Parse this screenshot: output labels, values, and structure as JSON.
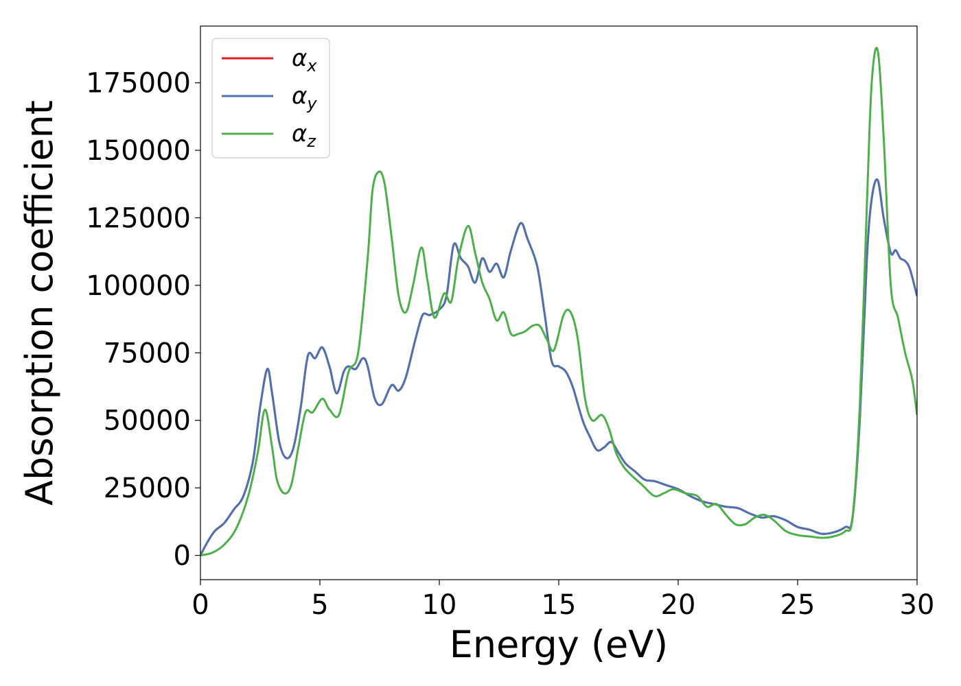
{
  "chart_data": {
    "type": "line",
    "xlabel": "Energy (eV)",
    "ylabel": "Absorption coefficient",
    "xlim": [
      0,
      30
    ],
    "ylim": [
      -9000,
      196000
    ],
    "xticks": [
      0,
      5,
      10,
      15,
      20,
      25,
      30
    ],
    "yticks": [
      0,
      25000,
      50000,
      75000,
      100000,
      125000,
      150000,
      175000
    ],
    "grid": false,
    "legend_position": "top-left",
    "series": [
      {
        "name": "αx",
        "legend_base": "α",
        "legend_sub": "x",
        "color": "#e41a1c",
        "x": [
          0,
          0.3,
          0.6,
          1.0,
          1.4,
          1.8,
          2.2,
          2.5,
          2.8,
          3.0,
          3.3,
          3.6,
          3.9,
          4.2,
          4.5,
          4.8,
          5.1,
          5.4,
          5.7,
          6.0,
          6.2,
          6.5,
          6.8,
          7.0,
          7.3,
          7.6,
          8.0,
          8.3,
          8.6,
          9.0,
          9.3,
          9.6,
          10.0,
          10.3,
          10.6,
          10.9,
          11.2,
          11.5,
          11.8,
          12.1,
          12.4,
          12.7,
          13.0,
          13.4,
          13.7,
          14.1,
          14.4,
          14.7,
          15.0,
          15.3,
          15.6,
          16.0,
          16.3,
          16.6,
          16.9,
          17.2,
          17.5,
          17.8,
          18.2,
          18.6,
          19.0,
          19.5,
          20.0,
          20.5,
          21.0,
          21.5,
          22.0,
          22.5,
          23.0,
          23.5,
          24.0,
          24.5,
          25.0,
          25.5,
          26.0,
          26.5,
          27.0,
          27.3,
          27.6,
          27.9,
          28.1,
          28.35,
          28.6,
          28.9,
          29.1,
          29.3,
          29.5,
          29.7,
          30.0
        ],
        "y": [
          0,
          5000,
          9000,
          12000,
          17000,
          22000,
          35000,
          55000,
          69000,
          60000,
          42000,
          36000,
          40000,
          55000,
          74000,
          73000,
          77000,
          70000,
          60000,
          68000,
          70000,
          69000,
          73000,
          70000,
          58000,
          56000,
          63000,
          61000,
          66000,
          80000,
          89000,
          89000,
          91000,
          96000,
          115000,
          110000,
          107000,
          101000,
          110000,
          105000,
          108000,
          103000,
          113000,
          123000,
          117000,
          107000,
          90000,
          72000,
          70000,
          68000,
          62000,
          50000,
          44000,
          39000,
          40000,
          42000,
          38000,
          34000,
          31000,
          28000,
          27500,
          26000,
          24500,
          22000,
          20000,
          19000,
          18000,
          17500,
          15500,
          14000,
          14500,
          13000,
          10500,
          9500,
          8000,
          8500,
          10500,
          14000,
          50000,
          110000,
          132000,
          139000,
          125000,
          112000,
          113000,
          110000,
          109000,
          106000,
          96000
        ]
      },
      {
        "name": "αy",
        "legend_base": "α",
        "legend_sub": "y",
        "color": "#4c72b0",
        "x": [
          0,
          0.3,
          0.6,
          1.0,
          1.4,
          1.8,
          2.2,
          2.5,
          2.8,
          3.0,
          3.3,
          3.6,
          3.9,
          4.2,
          4.5,
          4.8,
          5.1,
          5.4,
          5.7,
          6.0,
          6.2,
          6.5,
          6.8,
          7.0,
          7.3,
          7.6,
          8.0,
          8.3,
          8.6,
          9.0,
          9.3,
          9.6,
          10.0,
          10.3,
          10.6,
          10.9,
          11.2,
          11.5,
          11.8,
          12.1,
          12.4,
          12.7,
          13.0,
          13.4,
          13.7,
          14.1,
          14.4,
          14.7,
          15.0,
          15.3,
          15.6,
          16.0,
          16.3,
          16.6,
          16.9,
          17.2,
          17.5,
          17.8,
          18.2,
          18.6,
          19.0,
          19.5,
          20.0,
          20.5,
          21.0,
          21.5,
          22.0,
          22.5,
          23.0,
          23.5,
          24.0,
          24.5,
          25.0,
          25.5,
          26.0,
          26.5,
          27.0,
          27.3,
          27.6,
          27.9,
          28.1,
          28.35,
          28.6,
          28.9,
          29.1,
          29.3,
          29.5,
          29.7,
          30.0
        ],
        "y": [
          0,
          5000,
          9000,
          12000,
          17000,
          22000,
          35000,
          55000,
          69000,
          60000,
          42000,
          36000,
          40000,
          55000,
          74000,
          73000,
          77000,
          70000,
          60000,
          68000,
          70000,
          69000,
          73000,
          70000,
          58000,
          56000,
          63000,
          61000,
          66000,
          80000,
          89000,
          89000,
          91000,
          96000,
          115000,
          110000,
          107000,
          101000,
          110000,
          105000,
          108000,
          103000,
          113000,
          123000,
          117000,
          107000,
          90000,
          72000,
          70000,
          68000,
          62000,
          50000,
          44000,
          39000,
          40000,
          42000,
          38000,
          34000,
          31000,
          28000,
          27500,
          26000,
          24500,
          22000,
          20000,
          19000,
          18000,
          17500,
          15500,
          14000,
          14500,
          13000,
          10500,
          9500,
          8000,
          8500,
          10500,
          14000,
          50000,
          110000,
          132000,
          139000,
          125000,
          112000,
          113000,
          110000,
          109000,
          106000,
          96000
        ]
      },
      {
        "name": "αz",
        "legend_base": "α",
        "legend_sub": "z",
        "color": "#4daf4a",
        "x": [
          0,
          0.5,
          1.0,
          1.5,
          2.0,
          2.4,
          2.7,
          3.0,
          3.2,
          3.5,
          3.8,
          4.1,
          4.4,
          4.7,
          5.1,
          5.4,
          5.8,
          6.2,
          6.6,
          7.0,
          7.2,
          7.45,
          7.7,
          8.0,
          8.3,
          8.6,
          8.9,
          9.25,
          9.5,
          9.8,
          10.2,
          10.5,
          10.8,
          11.2,
          11.5,
          11.8,
          12.1,
          12.4,
          12.7,
          13.0,
          13.3,
          13.6,
          13.9,
          14.2,
          14.5,
          14.8,
          15.2,
          15.5,
          15.8,
          16.1,
          16.4,
          16.8,
          17.1,
          17.4,
          17.7,
          18.0,
          18.5,
          19.0,
          19.4,
          19.8,
          20.3,
          20.8,
          21.2,
          21.6,
          22.0,
          22.4,
          22.8,
          23.2,
          23.6,
          24.0,
          24.5,
          25.0,
          25.5,
          26.0,
          26.5,
          27.0,
          27.3,
          27.6,
          27.9,
          28.1,
          28.35,
          28.6,
          28.9,
          29.2,
          29.5,
          29.8,
          30.0
        ],
        "y": [
          0,
          1000,
          4000,
          10000,
          22000,
          38000,
          54000,
          40000,
          28000,
          23000,
          26000,
          40000,
          53000,
          53000,
          58000,
          54000,
          52000,
          68000,
          75000,
          110000,
          135000,
          142000,
          138000,
          118000,
          96000,
          90000,
          100000,
          114000,
          102000,
          88000,
          97000,
          94000,
          110000,
          122000,
          112000,
          101000,
          95000,
          87000,
          90000,
          82000,
          82000,
          83000,
          85000,
          85000,
          80000,
          76000,
          89000,
          90000,
          80000,
          58000,
          50000,
          52000,
          47000,
          38000,
          33000,
          30000,
          26000,
          22000,
          23000,
          24500,
          23000,
          22000,
          18000,
          19000,
          15000,
          11500,
          11500,
          14000,
          15000,
          13000,
          9000,
          7500,
          7000,
          6500,
          7000,
          9000,
          14000,
          55000,
          130000,
          175000,
          187000,
          155000,
          100000,
          88000,
          75000,
          65000,
          52000
        ]
      }
    ]
  }
}
